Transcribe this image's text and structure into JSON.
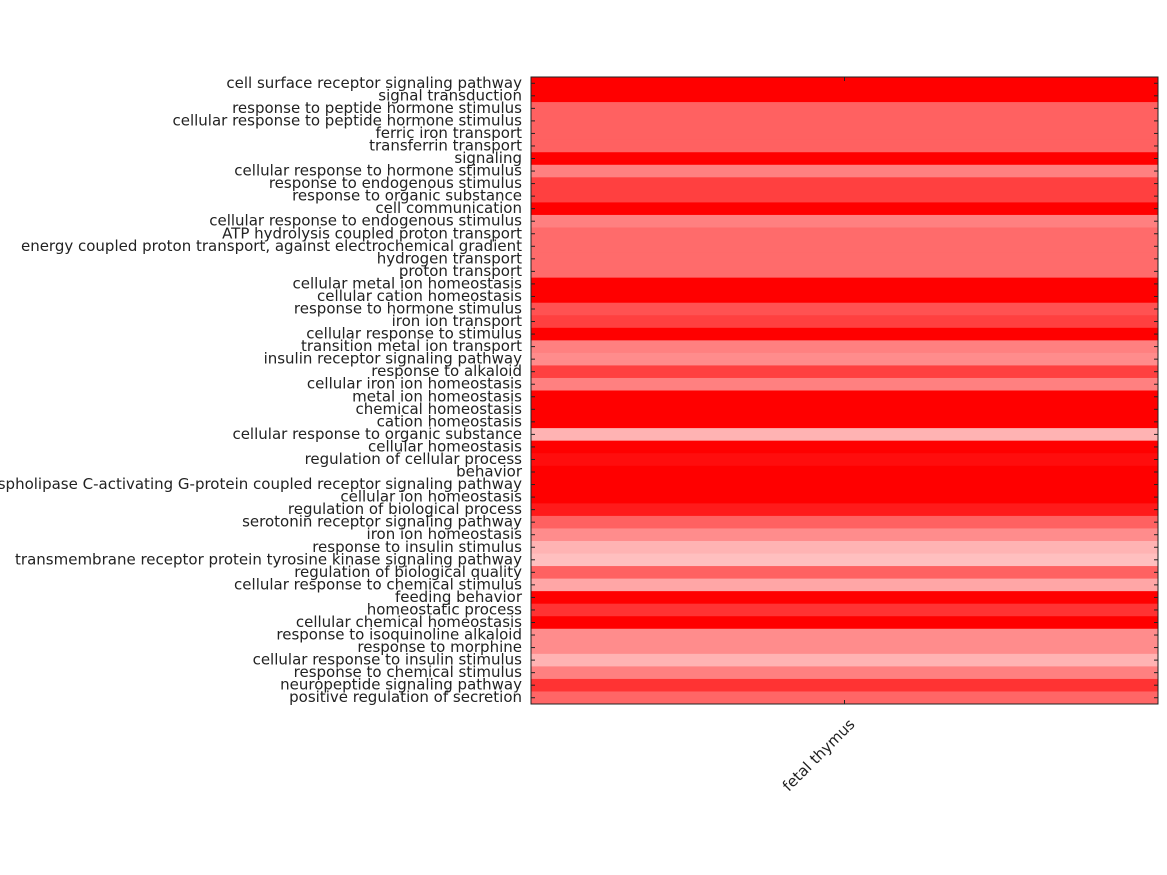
{
  "chart_data": {
    "type": "heatmap",
    "color": "#ff0000",
    "x_categories": [
      "fetal thymus"
    ],
    "y_categories": [
      "cell surface receptor signaling pathway",
      "signal transduction",
      "response to peptide hormone stimulus",
      "cellular response to peptide hormone stimulus",
      "ferric iron transport",
      "transferrin transport",
      "signaling",
      "cellular response to hormone stimulus",
      "response to endogenous stimulus",
      "response to organic substance",
      "cell communication",
      "cellular response to endogenous stimulus",
      "ATP hydrolysis coupled proton transport",
      "energy coupled proton transport, against electrochemical gradient",
      "hydrogen transport",
      "proton transport",
      "cellular metal ion homeostasis",
      "cellular cation homeostasis",
      "response to hormone stimulus",
      "iron ion transport",
      "cellular response to stimulus",
      "transition metal ion transport",
      "insulin receptor signaling pathway",
      "response to alkaloid",
      "cellular iron ion homeostasis",
      "metal ion homeostasis",
      "chemical homeostasis",
      "cation homeostasis",
      "cellular response to organic substance",
      "cellular homeostasis",
      "regulation of cellular process",
      "behavior",
      "phospholipase C-activating G-protein coupled receptor signaling pathway",
      "cellular ion homeostasis",
      "regulation of biological process",
      "serotonin receptor signaling pathway",
      "iron ion homeostasis",
      "response to insulin stimulus",
      "transmembrane receptor protein tyrosine kinase signaling pathway",
      "regulation of biological quality",
      "cellular response to chemical stimulus",
      "feeding behavior",
      "homeostatic process",
      "cellular chemical homeostasis",
      "response to isoquinoline alkaloid",
      "response to morphine",
      "cellular response to insulin stimulus",
      "response to chemical stimulus",
      "neuropeptide signaling pathway",
      "positive regulation of secretion"
    ],
    "values": [
      [
        1
      ],
      [
        1
      ],
      [
        0.62
      ],
      [
        0.62
      ],
      [
        0.62
      ],
      [
        0.62
      ],
      [
        1
      ],
      [
        0.5
      ],
      [
        0.75
      ],
      [
        0.75
      ],
      [
        1
      ],
      [
        0.5
      ],
      [
        0.58
      ],
      [
        0.58
      ],
      [
        0.58
      ],
      [
        0.58
      ],
      [
        1
      ],
      [
        1
      ],
      [
        0.68
      ],
      [
        0.75
      ],
      [
        1
      ],
      [
        0.5
      ],
      [
        0.45
      ],
      [
        0.75
      ],
      [
        0.5
      ],
      [
        1
      ],
      [
        1
      ],
      [
        1
      ],
      [
        0.3
      ],
      [
        1
      ],
      [
        0.95
      ],
      [
        1
      ],
      [
        1
      ],
      [
        1
      ],
      [
        0.9
      ],
      [
        0.62
      ],
      [
        0.45
      ],
      [
        0.3
      ],
      [
        0.25
      ],
      [
        0.62
      ],
      [
        0.35
      ],
      [
        1
      ],
      [
        0.8
      ],
      [
        1
      ],
      [
        0.45
      ],
      [
        0.45
      ],
      [
        0.3
      ],
      [
        0.5
      ],
      [
        0.8
      ],
      [
        0.6
      ]
    ]
  }
}
